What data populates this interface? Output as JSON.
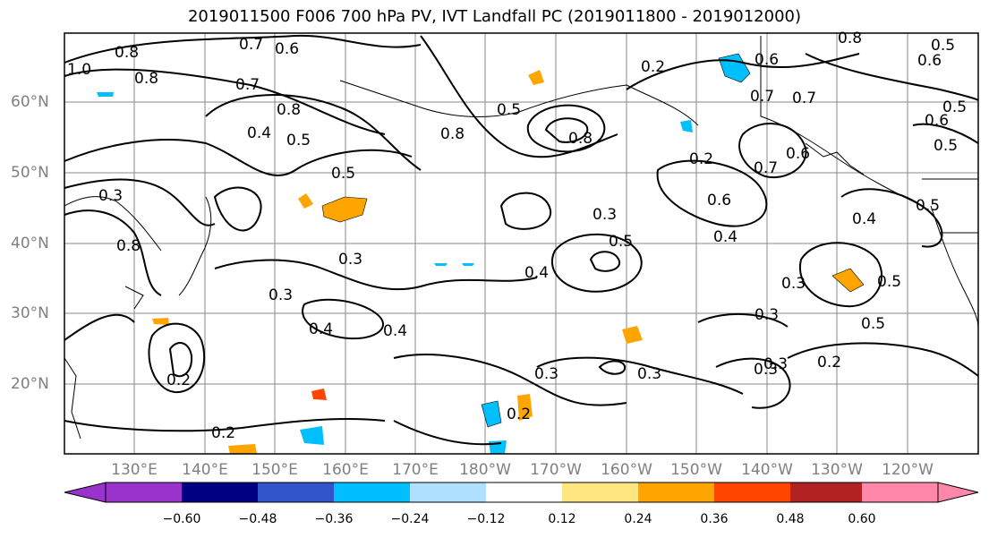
{
  "title": "2019011500 F006 700 hPa PV, IVT Landfall PC (2019011800 - 2019012000)",
  "lat_labels": [
    "60°N",
    "50°N",
    "40°N",
    "30°N",
    "20°N"
  ],
  "lon_labels": [
    "130°E",
    "140°E",
    "150°E",
    "160°E",
    "170°E",
    "180°W",
    "170°W",
    "160°W",
    "150°W",
    "140°W",
    "130°W",
    "120°W"
  ],
  "colorbar": {
    "ticks": [
      "−0.60",
      "−0.48",
      "−0.36",
      "−0.24",
      "−0.12",
      "0.12",
      "0.24",
      "0.36",
      "0.48",
      "0.60"
    ],
    "colors": [
      "#9933cc",
      "#000080",
      "#3355cc",
      "#00bfff",
      "#b0e0ff",
      "#ffffff",
      "#ffe680",
      "#ffa500",
      "#ff4500",
      "#b22222",
      "#ff88aa"
    ]
  },
  "contour_labels": [
    "0.8",
    "0.7",
    "0.6",
    "1.0",
    "0.8",
    "0.7",
    "0.8",
    "0.4",
    "0.5",
    "0.5",
    "0.3",
    "0.8",
    "0.5",
    "0.8",
    "0.2",
    "0.3",
    "0.3",
    "0.4",
    "0.3",
    "0.2",
    "0.5",
    "0.4",
    "0.3",
    "0.2",
    "0.3",
    "0.4",
    "0.2",
    "0.3",
    "0.3",
    "0.2",
    "0.2",
    "0.7",
    "0.6",
    "0.7",
    "0.6",
    "0.5",
    "0.4",
    "0.3",
    "0.5",
    "0.6",
    "0.8",
    "0.8",
    "0.6",
    "0.5",
    "0.5",
    "0.3",
    "0.6",
    "0.7",
    "0.5",
    "0.5",
    "0.4"
  ]
}
